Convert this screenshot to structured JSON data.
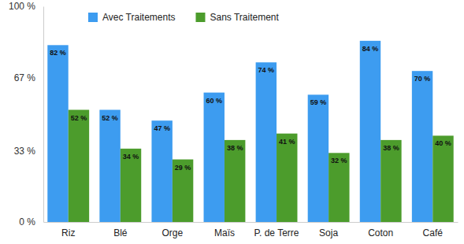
{
  "chart_data": {
    "type": "bar",
    "categories": [
      "Riz",
      "Blé",
      "Orge",
      "Maïs",
      "P. de Terre",
      "Soja",
      "Coton",
      "Café"
    ],
    "series": [
      {
        "name": "Avec Traitements",
        "color": "#3d9cf0",
        "values": [
          82,
          52,
          47,
          60,
          74,
          59,
          84,
          70
        ],
        "value_labels": [
          "82 %",
          "52 %",
          "47 %",
          "60 %",
          "74 %",
          "59 %",
          "84 %",
          "70 %"
        ]
      },
      {
        "name": "Sans Traitement",
        "color": "#4c9c2c",
        "values": [
          52,
          34,
          29,
          38,
          41,
          32,
          38,
          40
        ],
        "value_labels": [
          "52 %",
          "34 %",
          "29 %",
          "38 %",
          "41 %",
          "32 %",
          "38 %",
          "40 %"
        ]
      }
    ],
    "ylim": [
      0,
      100
    ],
    "yticks": [
      {
        "value": 0,
        "label": "0 %"
      },
      {
        "value": 33,
        "label": "33 %"
      },
      {
        "value": 67,
        "label": "67 %"
      },
      {
        "value": 100,
        "label": "100 %"
      }
    ],
    "grid": false,
    "legend": "top",
    "data_labels": true
  }
}
